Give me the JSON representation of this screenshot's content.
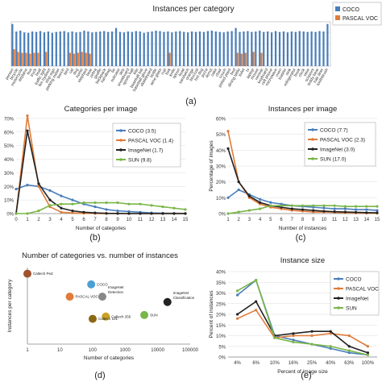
{
  "colors": {
    "coco": "#4a7ebb",
    "voc": "#e07b39",
    "imagenet": "#222222",
    "sun": "#7ab648",
    "grid": "#dddddd",
    "axis": "#888888"
  },
  "panel_labels": {
    "a": "(a)",
    "b": "(b)",
    "c": "(c)",
    "d": "(d)",
    "e": "(e)"
  },
  "chart_data": [
    {
      "id": "a",
      "type": "bar",
      "title": "Instances per category",
      "legend": [
        "COCO",
        "PASCAL VOC"
      ],
      "legend_position": "top-right",
      "ylim": [
        0,
        1
      ],
      "grid": true,
      "categories": [
        "person",
        "bicycle",
        "car",
        "motorcycle",
        "airplane",
        "bus",
        "train",
        "truck",
        "boat",
        "traffic light",
        "fire hydrant",
        "stop sign",
        "parking meter",
        "bench",
        "bird",
        "cat",
        "dog",
        "horse",
        "sheep",
        "cow",
        "elephant",
        "bear",
        "zebra",
        "giraffe",
        "backpack",
        "umbrella",
        "handbag",
        "tie",
        "suitcase",
        "frisbee",
        "skis",
        "snowboard",
        "sports ball",
        "kite",
        "baseball bat",
        "baseball glove",
        "skateboard",
        "surfboard",
        "tennis racket",
        "bottle",
        "wine glass",
        "cup",
        "fork",
        "knife",
        "spoon",
        "bowl",
        "banana",
        "apple",
        "sandwich",
        "orange",
        "broccoli",
        "carrot",
        "hot dog",
        "pizza",
        "donut",
        "cake",
        "chair",
        "couch",
        "potted plant",
        "bed",
        "dining table",
        "toilet",
        "tv",
        "laptop",
        "mouse",
        "remote",
        "keyboard",
        "cell phone",
        "microwave",
        "oven",
        "toaster",
        "sink",
        "refrigerator",
        "book",
        "clock",
        "vase",
        "scissors",
        "teddy bear",
        "hair drier",
        "toothbrush"
      ],
      "tick_labels": [
        "person",
        "bicycle",
        "motorcycle",
        "airplane",
        "bus",
        "truck",
        "boat",
        "traffic light",
        "fire hydrant",
        "stop sign",
        "parking meter",
        "bench",
        "bird",
        "cat",
        "dog",
        "horse",
        "elephant",
        "bear",
        "zebra",
        "giraffe",
        "backpack",
        "handbag",
        "tie",
        "suitcase",
        "skis",
        "snowboard",
        "sports ball",
        "kite",
        "baseball bat",
        "baseball glove",
        "skateboard",
        "bottle",
        "wine glass",
        "cup",
        "fork",
        "knife",
        "spoon",
        "bowl",
        "sandwich",
        "orange",
        "broccoli",
        "hot dog",
        "pizza",
        "donut",
        "cake",
        "chair",
        "couch",
        "potted plant",
        "bed",
        "dining table",
        "toilet",
        "tv",
        "laptop",
        "mouse",
        "remote",
        "keyboard",
        "cell phone",
        "microwave",
        "oven",
        "toaster",
        "sink",
        "refrigerator",
        "book",
        "clock",
        "vase",
        "scissors",
        "teddy bear",
        "hair drier",
        "toothbrush"
      ],
      "series": [
        {
          "name": "COCO",
          "values": [
            0.95,
            0.78,
            0.8,
            0.76,
            0.75,
            0.78,
            0.77,
            0.79,
            0.76,
            0.78,
            0.75,
            0.77,
            0.78,
            0.79,
            0.76,
            0.78,
            0.76,
            0.77,
            0.8,
            0.78,
            0.76,
            0.77,
            0.78,
            0.79,
            0.77,
            0.78,
            0.86,
            0.77,
            0.76,
            0.78,
            0.77,
            0.79,
            0.78,
            0.75,
            0.77,
            0.78,
            0.8,
            0.79,
            0.77,
            0.78,
            0.76,
            0.78,
            0.79,
            0.77,
            0.76,
            0.78,
            0.77,
            0.78,
            0.77,
            0.79,
            0.8,
            0.78,
            0.77,
            0.76,
            0.78,
            0.79,
            0.86,
            0.77,
            0.78,
            0.79,
            0.77,
            0.78,
            0.8,
            0.77,
            0.78,
            0.76,
            0.79,
            0.77,
            0.78,
            0.76,
            0.78,
            0.77,
            0.79,
            0.78,
            0.77,
            0.78,
            0.77,
            0.79,
            0.78,
            0.95
          ]
        },
        {
          "name": "PASCAL VOC",
          "values": [
            0.38,
            0.32,
            0.3,
            0.3,
            0.28,
            0.3,
            0.3,
            0,
            0.32,
            0,
            0,
            0,
            0,
            0,
            0.3,
            0.28,
            0.3,
            0.32,
            0.3,
            0.28,
            0,
            0,
            0,
            0,
            0,
            0,
            0,
            0,
            0,
            0,
            0,
            0,
            0,
            0,
            0,
            0,
            0,
            0,
            0,
            0.3,
            0,
            0,
            0,
            0,
            0,
            0,
            0,
            0,
            0,
            0,
            0,
            0,
            0,
            0,
            0,
            0,
            0.3,
            0.28,
            0.3,
            0,
            0.32,
            0,
            0.3,
            0,
            0,
            0,
            0,
            0,
            0,
            0,
            0,
            0,
            0,
            0,
            0,
            0,
            0,
            0,
            0,
            0
          ]
        }
      ]
    },
    {
      "id": "b",
      "type": "line",
      "title": "Categories per image",
      "xlabel": "Number of categories",
      "ylabel": "",
      "x": [
        0,
        1,
        2,
        3,
        4,
        5,
        6,
        7,
        8,
        9,
        10,
        11,
        12,
        13,
        14,
        15
      ],
      "ylim": [
        0,
        70
      ],
      "yticks": [
        "0%",
        "10%",
        "20%",
        "30%",
        "40%",
        "50%",
        "60%",
        "70%"
      ],
      "legend_position": "top-right",
      "series": [
        {
          "name": "COCO (3.5)",
          "color": "#4a7ebb",
          "values": [
            18,
            21,
            20,
            17,
            13,
            10,
            7,
            5,
            3,
            2,
            1.5,
            1,
            0.5,
            0.3,
            0.2,
            0.1
          ]
        },
        {
          "name": "PASCAL VOC (1.4)",
          "color": "#e07b39",
          "values": [
            0,
            72,
            20,
            5,
            1,
            0.5,
            0.2,
            0.1,
            0,
            0,
            0,
            0,
            0,
            0,
            0,
            0
          ]
        },
        {
          "name": "ImageNet (1.7)",
          "color": "#222222",
          "values": [
            0,
            61,
            22,
            10,
            4,
            2,
            1,
            0.5,
            0.2,
            0.1,
            0,
            0,
            0,
            0,
            0,
            0
          ]
        },
        {
          "name": "SUN (9.8)",
          "color": "#7ab648",
          "values": [
            0,
            0,
            2,
            6,
            7,
            7,
            8,
            8,
            8,
            8,
            7,
            7,
            6,
            5,
            4,
            3
          ]
        }
      ]
    },
    {
      "id": "c",
      "type": "line",
      "title": "Instances per image",
      "xlabel": "Number of instances",
      "ylabel": "Percentage of images",
      "x": [
        1,
        2,
        3,
        4,
        5,
        6,
        7,
        8,
        9,
        10,
        11,
        12,
        13,
        14,
        15
      ],
      "ylim": [
        0,
        60
      ],
      "yticks": [
        "0%",
        "10%",
        "20%",
        "30%",
        "40%",
        "50%",
        "60%"
      ],
      "legend_position": "top-right",
      "series": [
        {
          "name": "COCO (7.7)",
          "color": "#4a7ebb",
          "values": [
            10,
            15,
            12,
            9,
            7,
            6,
            5,
            4.5,
            4,
            3.5,
            3,
            3,
            2.5,
            2.5,
            2
          ]
        },
        {
          "name": "PASCAL VOC (2.3)",
          "color": "#e07b39",
          "values": [
            52,
            20,
            10,
            6,
            4,
            3,
            2,
            1.5,
            1,
            1,
            0.8,
            0.5,
            0.4,
            0.3,
            0.2
          ]
        },
        {
          "name": "ImageNet (3.0)",
          "color": "#222222",
          "values": [
            41,
            20,
            11,
            7,
            5,
            4,
            3,
            2.5,
            2,
            1.5,
            1.2,
            1,
            0.8,
            0.6,
            0.5
          ]
        },
        {
          "name": "SUN (17.0)",
          "color": "#7ab648",
          "values": [
            0,
            1,
            2,
            3,
            5,
            5,
            5,
            5,
            5,
            5,
            5,
            4.5,
            4.5,
            4.5,
            4.5
          ]
        }
      ]
    },
    {
      "id": "d",
      "type": "scatter",
      "title": "Number of categories vs. number of instances",
      "xlabel": "Number of categories",
      "ylabel": "Instances per category",
      "xscale": "log",
      "xticks": [
        "1",
        "10",
        "100",
        "1000",
        "10000",
        "100000"
      ],
      "xlim": [
        1,
        100000
      ],
      "points": [
        {
          "label": "Caltech Ped",
          "x": 1,
          "y": 0.92,
          "color": "#a0522d"
        },
        {
          "label": "COCO",
          "x": 91,
          "y": 0.78,
          "color": "#4a9fd5"
        },
        {
          "label": "PASCAL VOC",
          "x": 20,
          "y": 0.62,
          "color": "#e07b39"
        },
        {
          "label": "ImageNet Detection",
          "x": 200,
          "y": 0.62,
          "color": "#888888"
        },
        {
          "label": "ImageNet Classification",
          "x": 20000,
          "y": 0.55,
          "color": "#222222"
        },
        {
          "label": "Caltech 256",
          "x": 256,
          "y": 0.36,
          "color": "#c9a227"
        },
        {
          "label": "Caltech 101",
          "x": 101,
          "y": 0.33,
          "color": "#8b6914"
        },
        {
          "label": "SUN",
          "x": 3900,
          "y": 0.38,
          "color": "#7ab648"
        }
      ]
    },
    {
      "id": "e",
      "type": "line",
      "title": "Instance size",
      "xlabel": "Percent of image size",
      "ylabel": "Percent of instances",
      "categories": [
        "4%",
        "6%",
        "10%",
        "16%",
        "25%",
        "40%",
        "63%",
        "100%"
      ],
      "ylim": [
        0,
        40
      ],
      "yticks": [
        "0%",
        "5%",
        "10%",
        "15%",
        "20%",
        "25%",
        "30%",
        "35%",
        "40%"
      ],
      "legend_position": "top-right",
      "series": [
        {
          "name": "COCO",
          "color": "#4a7ebb",
          "values": [
            29,
            36,
            10,
            8,
            6,
            4,
            2,
            1
          ]
        },
        {
          "name": "PASCAL VOC",
          "color": "#e07b39",
          "values": [
            18,
            22,
            9,
            10,
            10,
            11,
            10,
            5
          ]
        },
        {
          "name": "ImageNet",
          "color": "#222222",
          "values": [
            20,
            26,
            10,
            11,
            12,
            12,
            5,
            2
          ]
        },
        {
          "name": "SUN",
          "color": "#7ab648",
          "values": [
            31,
            36,
            9,
            7,
            6,
            5,
            3,
            1
          ]
        }
      ]
    }
  ]
}
